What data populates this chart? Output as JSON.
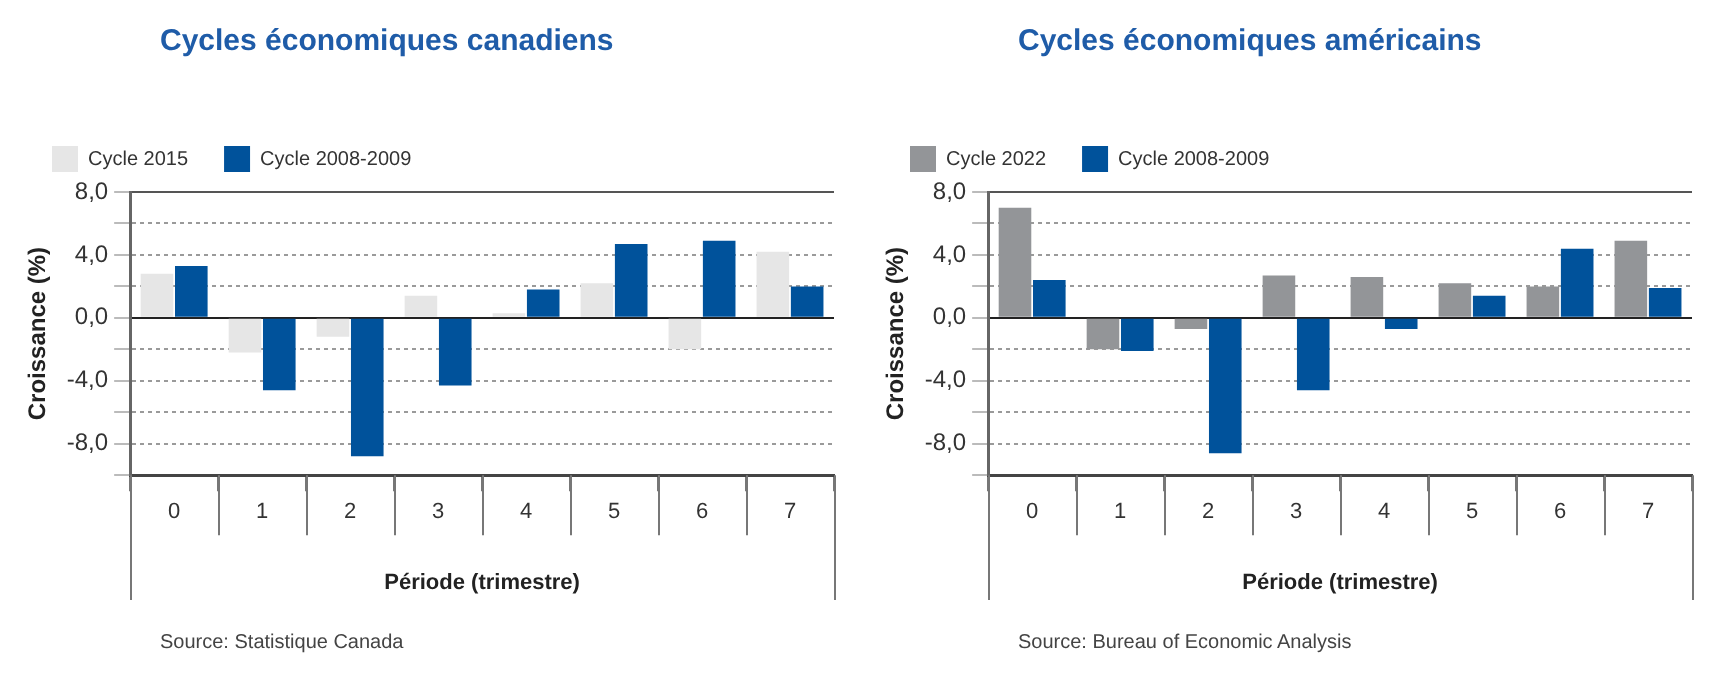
{
  "chart_data": [
    {
      "type": "bar",
      "title": "Cycles économiques canadiens",
      "xlabel": "Période (trimestre)",
      "ylabel": "Croissance (%)",
      "categories": [
        "0",
        "1",
        "2",
        "3",
        "4",
        "5",
        "6",
        "7"
      ],
      "series": [
        {
          "name": "Cycle 2015",
          "color": "#e6e6e6",
          "values": [
            2.8,
            -2.2,
            -1.2,
            1.4,
            0.3,
            2.2,
            -2.0,
            4.2
          ]
        },
        {
          "name": "Cycle 2008-2009",
          "color": "#00529b",
          "values": [
            3.3,
            -4.6,
            -8.8,
            -4.3,
            1.8,
            4.7,
            4.9,
            2.0
          ]
        }
      ],
      "ylim": [
        -10,
        8
      ],
      "yticks": [
        {
          "value": -10,
          "label": null
        },
        {
          "value": -8,
          "label": "-8,0"
        },
        {
          "value": -6,
          "label": null
        },
        {
          "value": -4,
          "label": "-4,0"
        },
        {
          "value": -2,
          "label": null
        },
        {
          "value": 0,
          "label": "0,0"
        },
        {
          "value": 2,
          "label": null
        },
        {
          "value": 4,
          "label": "4,0"
        },
        {
          "value": 6,
          "label": null
        },
        {
          "value": 8,
          "label": "8,0"
        }
      ],
      "grid": "y",
      "legend": "top left",
      "annotations": [
        "Source: Statistique Canada"
      ]
    },
    {
      "type": "bar",
      "title": "Cycles économiques américains",
      "xlabel": "Période (trimestre)",
      "ylabel": "Croissance (%)",
      "categories": [
        "0",
        "1",
        "2",
        "3",
        "4",
        "5",
        "6",
        "7"
      ],
      "series": [
        {
          "name": "Cycle 2022",
          "color": "#939598",
          "values": [
            7.0,
            -2.0,
            -0.7,
            2.7,
            2.6,
            2.2,
            2.0,
            4.9
          ]
        },
        {
          "name": "Cycle 2008-2009",
          "color": "#00529b",
          "values": [
            2.4,
            -2.1,
            -8.6,
            -4.6,
            -0.7,
            1.4,
            4.4,
            1.9
          ]
        }
      ],
      "ylim": [
        -10,
        8
      ],
      "yticks": [
        {
          "value": -10,
          "label": null
        },
        {
          "value": -8,
          "label": "-8,0"
        },
        {
          "value": -6,
          "label": null
        },
        {
          "value": -4,
          "label": "-4,0"
        },
        {
          "value": -2,
          "label": null
        },
        {
          "value": 0,
          "label": "0,0"
        },
        {
          "value": 2,
          "label": null
        },
        {
          "value": 4,
          "label": "4,0"
        },
        {
          "value": 6,
          "label": null
        },
        {
          "value": 8,
          "label": "8,0"
        }
      ],
      "grid": "y",
      "legend": "top left",
      "annotations": [
        "Source: Bureau of Economic Analysis"
      ]
    }
  ]
}
